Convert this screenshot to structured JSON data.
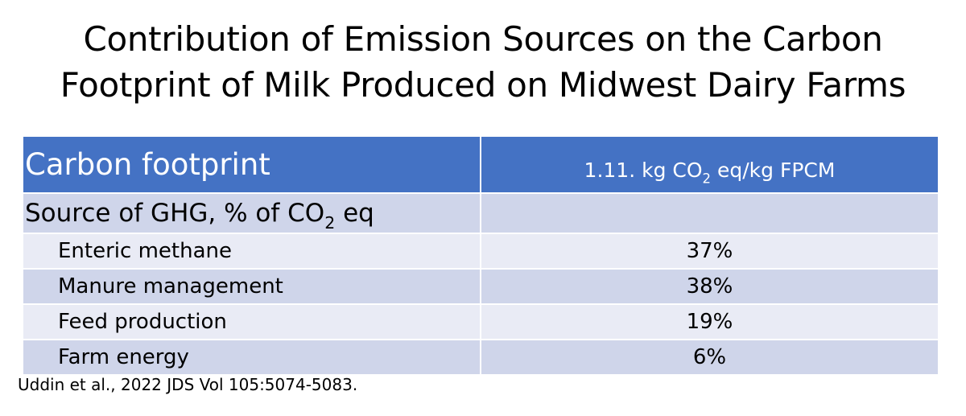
{
  "title": {
    "line1": "Contribution of Emission Sources on the Carbon",
    "line2": "Footprint of Milk Produced on Midwest Dairy Farms"
  },
  "table": {
    "header": {
      "label": "Carbon footprint",
      "value_pre": "1.11. kg CO",
      "value_sub": "2",
      "value_post": " eq/kg FPCM"
    },
    "section": {
      "label_pre": "Source of GHG, % of CO",
      "label_sub": "2",
      "label_post": " eq",
      "value": ""
    },
    "rows": [
      {
        "label": "Enteric methane",
        "value": "37%"
      },
      {
        "label": "Manure management",
        "value": "38%"
      },
      {
        "label": "Feed production",
        "value": "19%"
      },
      {
        "label": "Farm energy",
        "value": "6%"
      }
    ]
  },
  "citation": "Uddin et al., 2022 JDS Vol 105:5074-5083.",
  "colors": {
    "header_bg": "#4472c4",
    "band_dark": "#cfd5ea",
    "band_light": "#e9ebf5"
  }
}
